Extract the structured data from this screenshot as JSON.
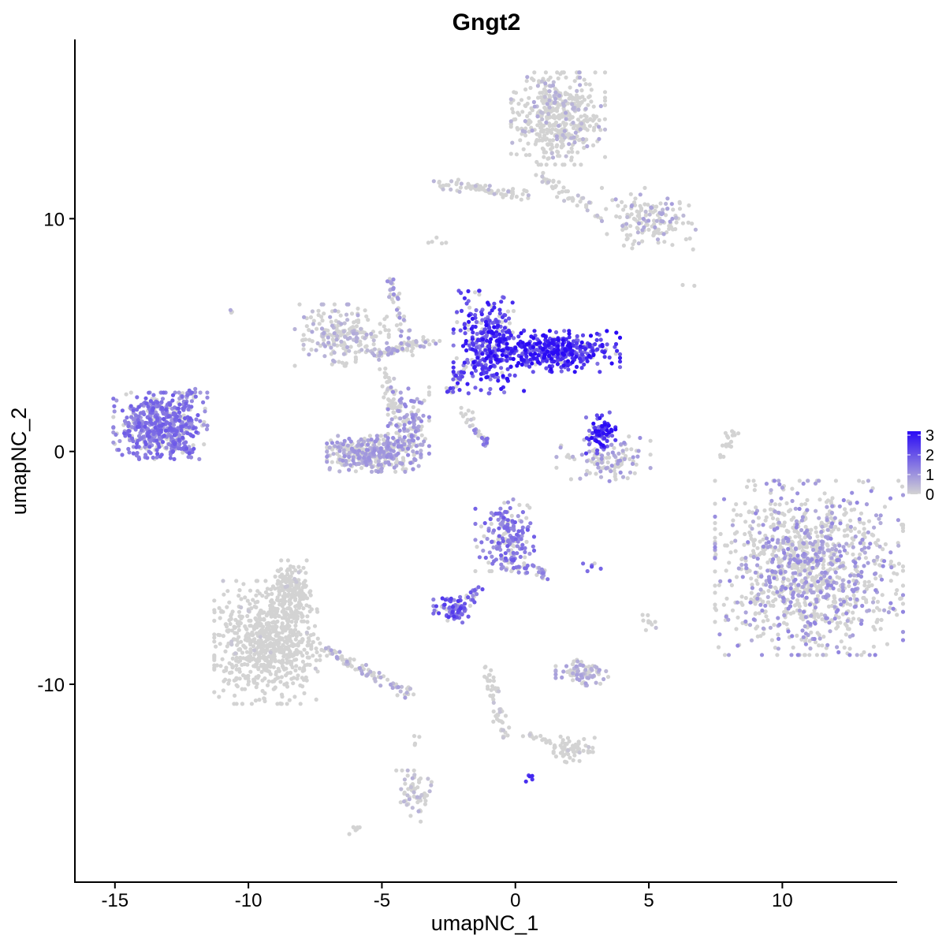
{
  "chart_data": {
    "type": "scatter",
    "title": "Gngt2",
    "xlabel": "umapNC_1",
    "ylabel": "umapNC_2",
    "xlim": [
      -16.5,
      14.3
    ],
    "ylim": [
      -18.5,
      17.7
    ],
    "x_ticks": [
      -15,
      -10,
      -5,
      0,
      5,
      10
    ],
    "x_tick_labels": [
      "-15",
      "-10",
      "-5",
      "0",
      "5",
      "10"
    ],
    "y_ticks": [
      -10,
      0,
      10
    ],
    "y_tick_labels": [
      "-10",
      "0",
      "10"
    ],
    "grid": false,
    "color_scale": {
      "low_color": "#d3d3d3",
      "high_color": "#2a0af5",
      "min": 0,
      "max": 3.2,
      "legend_ticks": [
        3,
        2,
        1,
        0
      ],
      "legend_tick_labels": [
        "3",
        "2",
        "1",
        "0"
      ],
      "legend_placement": "right"
    },
    "clusters": [
      {
        "cx": 11.0,
        "cy": -5.0,
        "sx": 1.6,
        "sy": 1.7,
        "n": 1200,
        "mean_expr": 0.9,
        "pos_frac": 0.35
      },
      {
        "cx": -9.3,
        "cy": -8.2,
        "sx": 0.9,
        "sy": 1.2,
        "n": 700,
        "mean_expr": 0.05,
        "pos_frac": 0.03
      },
      {
        "cx": -8.4,
        "cy": -6.0,
        "sx": 0.35,
        "sy": 0.6,
        "n": 150,
        "mean_expr": 0.05,
        "pos_frac": 0.03
      },
      {
        "cx": 1.6,
        "cy": 14.3,
        "sx": 0.8,
        "sy": 0.9,
        "n": 450,
        "mean_expr": 0.5,
        "pos_frac": 0.2
      },
      {
        "cx": 5.0,
        "cy": 10.0,
        "sx": 0.8,
        "sy": 0.6,
        "n": 150,
        "mean_expr": 0.6,
        "pos_frac": 0.25
      },
      {
        "cx": -1.0,
        "cy": 4.7,
        "sx": 0.6,
        "sy": 1.0,
        "n": 320,
        "mean_expr": 2.3,
        "pos_frac": 0.9
      },
      {
        "cx": 1.5,
        "cy": 4.3,
        "sx": 1.1,
        "sy": 0.4,
        "n": 400,
        "mean_expr": 2.5,
        "pos_frac": 0.92
      },
      {
        "cx": -13.3,
        "cy": 1.1,
        "sx": 0.8,
        "sy": 0.65,
        "n": 550,
        "mean_expr": 1.4,
        "pos_frac": 0.8
      },
      {
        "cx": -5.3,
        "cy": -0.1,
        "sx": 0.8,
        "sy": 0.35,
        "n": 380,
        "mean_expr": 0.8,
        "pos_frac": 0.5
      },
      {
        "cx": -4.0,
        "cy": 1.0,
        "sx": 0.35,
        "sy": 0.8,
        "n": 150,
        "mean_expr": 0.9,
        "pos_frac": 0.55
      },
      {
        "cx": -6.5,
        "cy": 5.0,
        "sx": 0.8,
        "sy": 0.6,
        "n": 200,
        "mean_expr": 0.5,
        "pos_frac": 0.35
      },
      {
        "cx": 3.3,
        "cy": -0.3,
        "sx": 0.8,
        "sy": 0.45,
        "n": 120,
        "mean_expr": 0.8,
        "pos_frac": 0.4
      },
      {
        "cx": 3.2,
        "cy": 0.8,
        "sx": 0.25,
        "sy": 0.4,
        "n": 80,
        "mean_expr": 2.4,
        "pos_frac": 0.9
      },
      {
        "cx": -0.4,
        "cy": -3.6,
        "sx": 0.5,
        "sy": 0.7,
        "n": 180,
        "mean_expr": 1.4,
        "pos_frac": 0.75
      },
      {
        "cx": -2.3,
        "cy": -6.8,
        "sx": 0.35,
        "sy": 0.25,
        "n": 80,
        "mean_expr": 1.8,
        "pos_frac": 0.85
      },
      {
        "cx": -2.5,
        "cy": -2.5,
        "sx": 1.1,
        "sy": 2.0,
        "n": 0,
        "mean_expr": 0,
        "pos_frac": 0
      },
      {
        "cx": 2.5,
        "cy": -9.5,
        "sx": 0.45,
        "sy": 0.25,
        "n": 90,
        "mean_expr": 0.6,
        "pos_frac": 0.4
      },
      {
        "cx": 2.2,
        "cy": -12.8,
        "sx": 0.35,
        "sy": 0.25,
        "n": 60,
        "mean_expr": 0.05,
        "pos_frac": 0.03
      },
      {
        "cx": -3.8,
        "cy": -14.8,
        "sx": 0.3,
        "sy": 0.5,
        "n": 60,
        "mean_expr": 0.4,
        "pos_frac": 0.25
      },
      {
        "cx": -2.5,
        "cy": -10.4,
        "sx": 0.3,
        "sy": 0.3,
        "n": 0,
        "mean_expr": 0,
        "pos_frac": 0
      }
    ],
    "strands": [
      {
        "from": [
          -3.0,
          11.5
        ],
        "to": [
          0.6,
          11.0
        ],
        "n": 70,
        "mean_expr": 0.4,
        "pos_frac": 0.2
      },
      {
        "from": [
          1.0,
          11.8
        ],
        "to": [
          3.2,
          10.0
        ],
        "n": 45,
        "mean_expr": 0.3,
        "pos_frac": 0.15
      },
      {
        "from": [
          -7.2,
          -8.5
        ],
        "to": [
          -4.0,
          -10.4
        ],
        "n": 90,
        "mean_expr": 0.6,
        "pos_frac": 0.35
      },
      {
        "from": [
          -13.0,
          0.4
        ],
        "to": [
          -12.2,
          -0.1
        ],
        "n": 45,
        "mean_expr": 1.4,
        "pos_frac": 0.8
      },
      {
        "from": [
          -12.5,
          2.2
        ],
        "to": [
          -11.8,
          2.7
        ],
        "n": 20,
        "mean_expr": 1.2,
        "pos_frac": 0.7
      },
      {
        "from": [
          -4.7,
          7.4
        ],
        "to": [
          -4.0,
          4.4
        ],
        "n": 45,
        "mean_expr": 0.8,
        "pos_frac": 0.5
      },
      {
        "from": [
          -5.2,
          4.2
        ],
        "to": [
          -3.0,
          4.8
        ],
        "n": 70,
        "mean_expr": 0.7,
        "pos_frac": 0.4
      },
      {
        "from": [
          -4.8,
          3.5
        ],
        "to": [
          -4.6,
          1.5
        ],
        "n": 40,
        "mean_expr": 0.2,
        "pos_frac": 0.1
      },
      {
        "from": [
          -2.0,
          1.8
        ],
        "to": [
          -1.4,
          0.8
        ],
        "n": 15,
        "mean_expr": 0.3,
        "pos_frac": 0.2
      },
      {
        "from": [
          -1.5,
          0.8
        ],
        "to": [
          -1.0,
          0.4
        ],
        "n": 20,
        "mean_expr": 1.2,
        "pos_frac": 0.6
      },
      {
        "from": [
          -2.4,
          2.6
        ],
        "to": [
          -2.0,
          3.6
        ],
        "n": 25,
        "mean_expr": 2.0,
        "pos_frac": 0.8
      },
      {
        "from": [
          -0.5,
          -4.6
        ],
        "to": [
          1.2,
          -5.4
        ],
        "n": 40,
        "mean_expr": 1.2,
        "pos_frac": 0.6
      },
      {
        "from": [
          -1.8,
          -6.4
        ],
        "to": [
          -1.3,
          -5.8
        ],
        "n": 15,
        "mean_expr": 1.6,
        "pos_frac": 0.8
      },
      {
        "from": [
          -1.1,
          -9.2
        ],
        "to": [
          -0.4,
          -12.3
        ],
        "n": 50,
        "mean_expr": 0.2,
        "pos_frac": 0.1
      },
      {
        "from": [
          0.4,
          -12.2
        ],
        "to": [
          2.0,
          -12.6
        ],
        "n": 20,
        "mean_expr": 0.1,
        "pos_frac": 0.05
      },
      {
        "from": [
          -3.7,
          -12.0
        ],
        "to": [
          -3.7,
          -12.6
        ],
        "n": 4,
        "mean_expr": 0,
        "pos_frac": 0
      },
      {
        "from": [
          -6.2,
          -16.3
        ],
        "to": [
          -5.9,
          -16.1
        ],
        "n": 8,
        "mean_expr": 0,
        "pos_frac": 0
      },
      {
        "from": [
          7.8,
          -0.2
        ],
        "to": [
          8.2,
          0.9
        ],
        "n": 18,
        "mean_expr": 0,
        "pos_frac": 0
      },
      {
        "from": [
          4.9,
          -7.1
        ],
        "to": [
          5.1,
          -7.6
        ],
        "n": 10,
        "mean_expr": 0.5,
        "pos_frac": 0.4
      },
      {
        "from": [
          -3.0,
          9.0
        ],
        "to": [
          -2.8,
          9.2
        ],
        "n": 5,
        "mean_expr": 0.1,
        "pos_frac": 0
      },
      {
        "from": [
          -10.7,
          6.1
        ],
        "to": [
          -10.6,
          6.0
        ],
        "n": 3,
        "mean_expr": 1.0,
        "pos_frac": 0.6
      },
      {
        "from": [
          0.5,
          -14.0
        ],
        "to": [
          0.6,
          -14.1
        ],
        "n": 5,
        "mean_expr": 2.0,
        "pos_frac": 1.0
      },
      {
        "from": [
          2.7,
          -5.0
        ],
        "to": [
          2.9,
          -5.0
        ],
        "n": 6,
        "mean_expr": 1.5,
        "pos_frac": 0.8
      },
      {
        "from": [
          5.4,
          7.2
        ],
        "to": [
          6.8,
          7.0
        ],
        "n": 2,
        "mean_expr": 0,
        "pos_frac": 0
      }
    ]
  }
}
